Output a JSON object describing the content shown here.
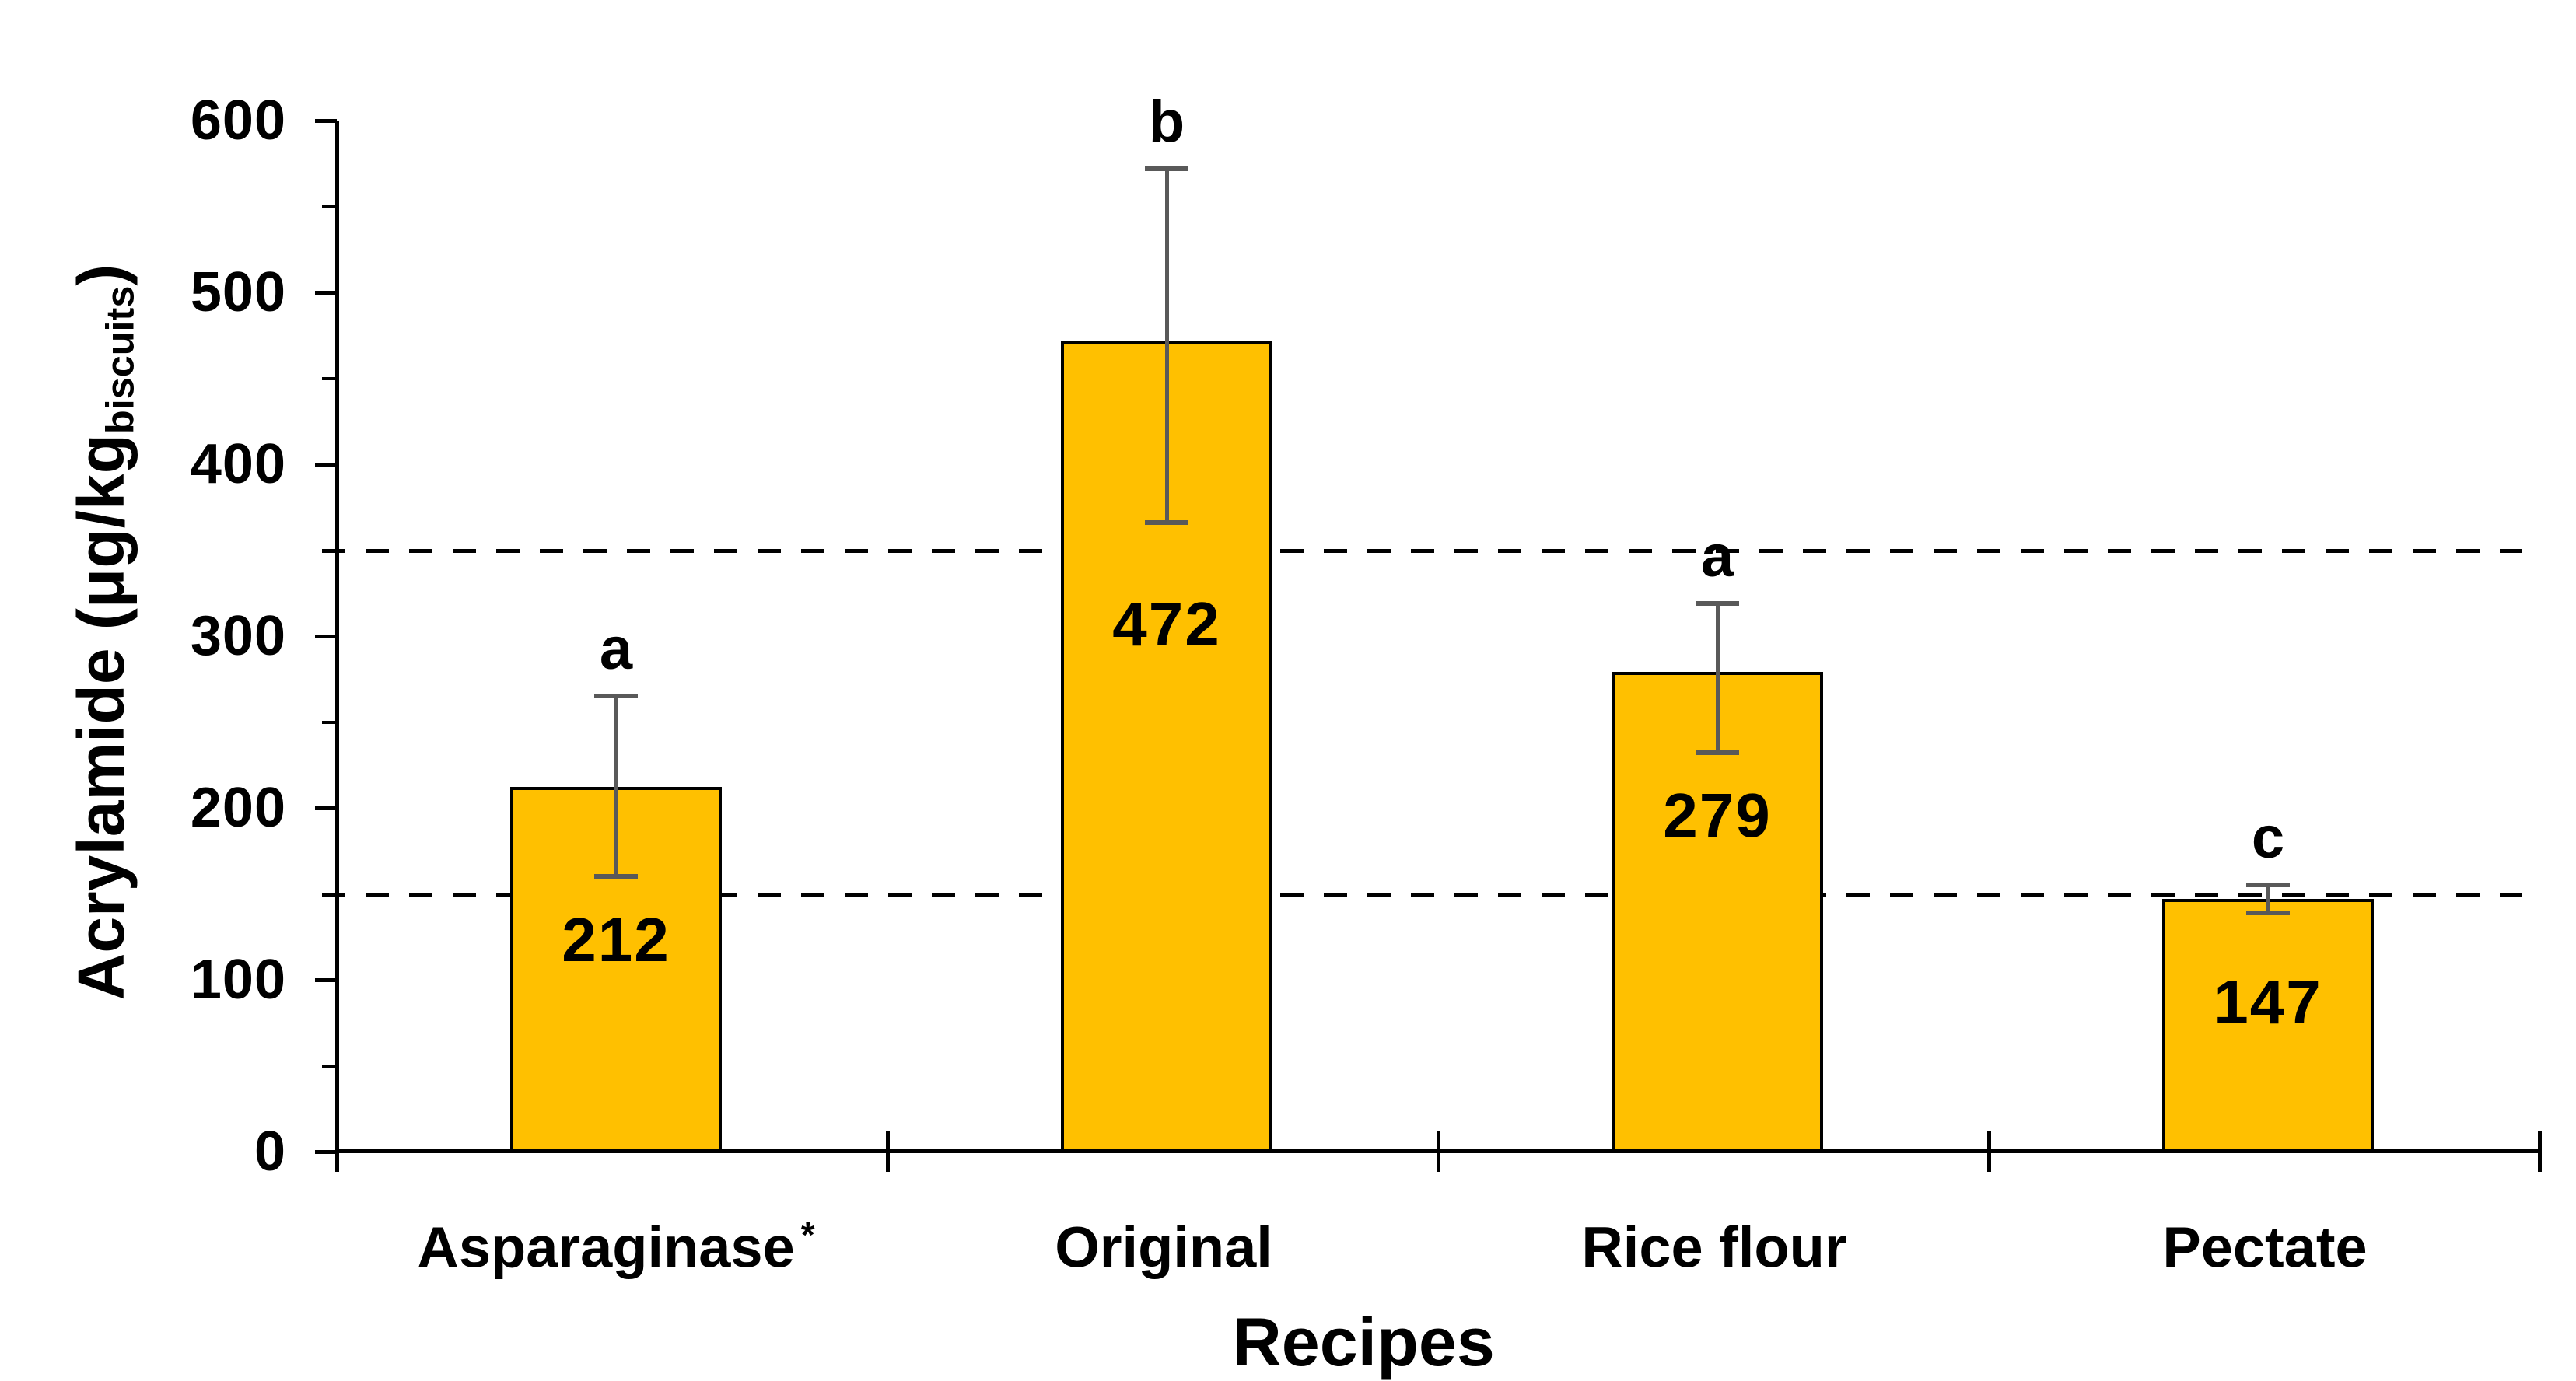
{
  "figure": {
    "background": "#FFFFFF",
    "colors": {
      "bar_fill": "#FFC000",
      "bar_border": "#000000",
      "error_bar": "#595959",
      "axis": "#000000",
      "text": "#000000",
      "reference_line": "#000000"
    },
    "y_axis": {
      "title_main": "Acrylamide (μg/kg",
      "title_sub": "biscuits",
      "title_close": ")",
      "tick_labels": [
        "600",
        "500",
        "400",
        "300",
        "200",
        "100",
        "0"
      ],
      "tick_values": [
        600,
        500,
        400,
        300,
        200,
        100,
        0
      ],
      "minor_tick_values": [
        550,
        450,
        350,
        250,
        150,
        50
      ]
    },
    "x_axis": {
      "title": "Recipes"
    }
  },
  "chart_data": {
    "type": "bar",
    "title": "",
    "xlabel": "Recipes",
    "ylabel": "Acrylamide (μg/kg_biscuits)",
    "ylim": [
      0,
      600
    ],
    "grid": false,
    "legend": false,
    "categories": [
      "Asparaginase*",
      "Original",
      "Rice flour",
      "Pectate"
    ],
    "values": [
      212,
      472,
      279,
      147
    ],
    "reference_lines_y": [
      350,
      150
    ],
    "bars": [
      {
        "label": "Asparaginase",
        "sup": "*",
        "value": 212,
        "value_label": "212",
        "sig_letter": "a",
        "error_top": 265,
        "error_bottom": 160
      },
      {
        "label": "Original",
        "sup": "",
        "value": 472,
        "value_label": "472",
        "sig_letter": "b",
        "error_top": 572,
        "error_bottom": 366
      },
      {
        "label": "Rice flour",
        "sup": "",
        "value": 279,
        "value_label": "279",
        "sig_letter": "a",
        "error_top": 319,
        "error_bottom": 232
      },
      {
        "label": "Pectate",
        "sup": "",
        "value": 147,
        "value_label": "147",
        "sig_letter": "c",
        "error_top": 155,
        "error_bottom": 139
      }
    ]
  }
}
